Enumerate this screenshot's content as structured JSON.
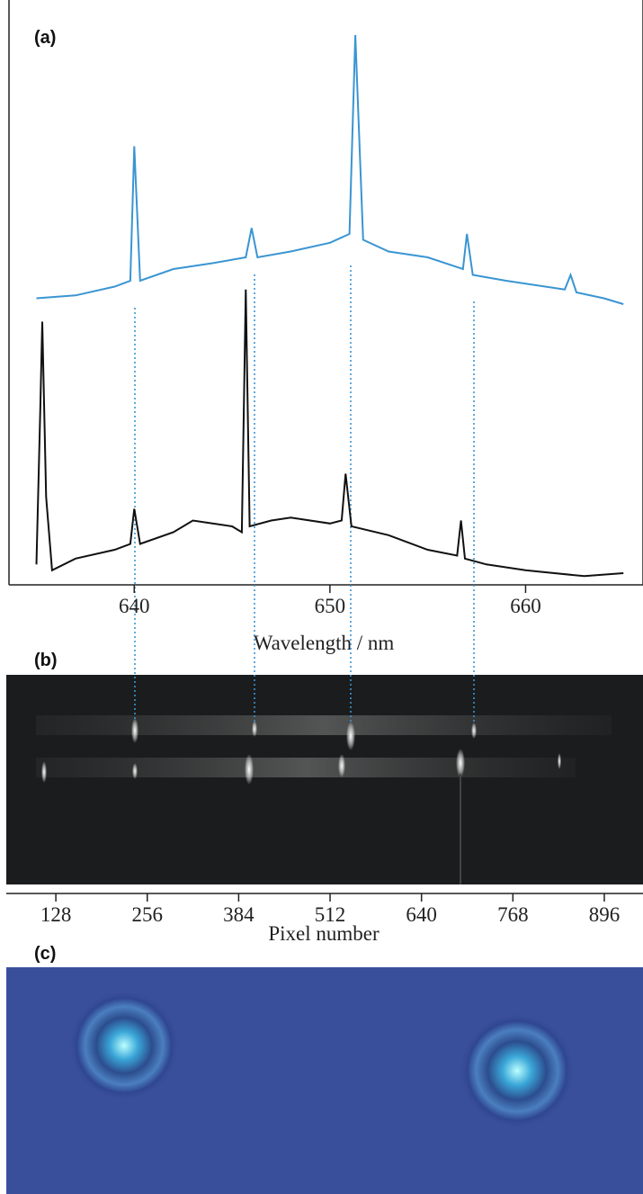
{
  "panel_labels": [
    "(a)",
    "(b)",
    "(c)"
  ],
  "chart_data": [
    {
      "type": "line",
      "xlabel": "Wavelength / nm",
      "xlim": [
        633.6,
        666.0
      ],
      "xticks": [
        640,
        650,
        660
      ],
      "ylim": [
        0,
        100
      ],
      "series": [
        {
          "color": "#3a95d2",
          "x": [
            635,
            637,
            639,
            639.8,
            640.0,
            640.3,
            642,
            644,
            645.7,
            646.0,
            646.3,
            648,
            650,
            651.0,
            651.3,
            651.7,
            653,
            655,
            656.8,
            657.0,
            657.3,
            659,
            661,
            662.0,
            662.3,
            662.6,
            664,
            665
          ],
          "values": [
            49,
            49.5,
            51,
            52,
            75,
            52,
            54,
            55,
            56,
            61,
            56,
            57,
            58.5,
            60,
            94,
            59,
            57,
            56,
            54,
            60,
            53,
            52,
            51,
            50.5,
            53,
            50,
            49,
            48
          ]
        },
        {
          "color": "#111111",
          "x": [
            635,
            635.2,
            635.3,
            635.5,
            635.8,
            637,
            639,
            639.8,
            640.0,
            640.3,
            642,
            643,
            644,
            645,
            645.5,
            645.7,
            645.9,
            647,
            648,
            650,
            650.6,
            650.8,
            651.1,
            653,
            655,
            656.5,
            656.7,
            656.9,
            658,
            660,
            663,
            665
          ],
          "values": [
            3.5,
            30,
            45,
            15,
            2.5,
            4.5,
            6,
            7,
            13,
            7,
            9,
            11,
            10.5,
            10,
            9,
            50.5,
            10,
            11,
            11.5,
            10.5,
            11,
            19,
            10,
            8.5,
            6,
            5,
            11,
            4.5,
            3.5,
            2.5,
            1.5,
            2
          ]
        }
      ]
    },
    {
      "type": "image",
      "xlabel": "Pixel number",
      "xlim": [
        58.6,
        950.2
      ],
      "xticks": [
        128,
        256,
        384,
        512,
        640,
        768,
        896
      ]
    }
  ]
}
